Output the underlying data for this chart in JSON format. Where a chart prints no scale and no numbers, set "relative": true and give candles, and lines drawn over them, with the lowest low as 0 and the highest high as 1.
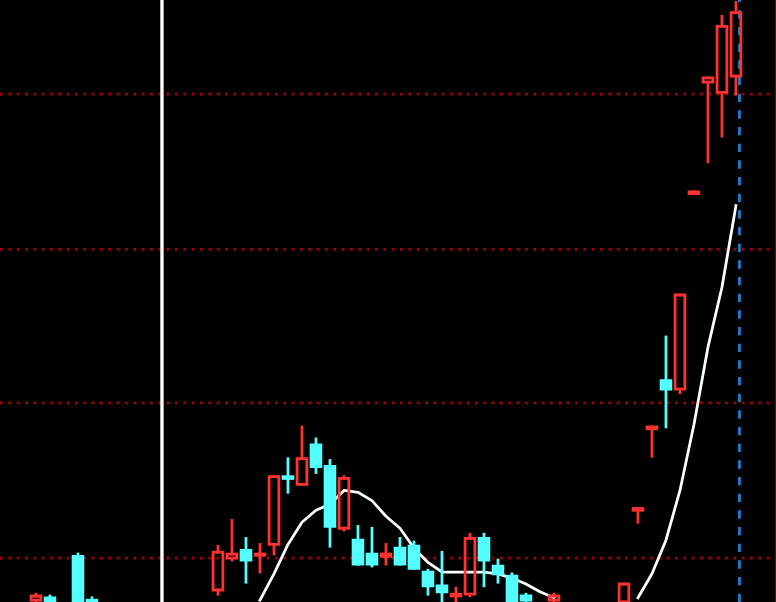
{
  "chart_data": {
    "type": "candlestick",
    "relative": true,
    "ref_lines": [
      {
        "axis": "y",
        "value": 0.073,
        "color": "#a00000",
        "line_style": "dotted"
      },
      {
        "axis": "y",
        "value": 0.332,
        "color": "#a00000",
        "line_style": "dotted"
      },
      {
        "axis": "y",
        "value": 0.588,
        "color": "#a00000",
        "line_style": "dotted"
      },
      {
        "axis": "y",
        "value": 0.847,
        "color": "#a00000",
        "line_style": "dotted"
      }
    ],
    "categories": [
      null,
      null,
      null,
      null,
      null,
      null,
      null,
      null,
      null,
      null,
      null,
      null,
      null,
      null,
      null,
      null,
      null,
      null,
      null,
      null,
      null,
      null,
      null,
      null,
      null,
      null,
      null,
      null,
      null,
      null,
      null,
      null,
      null,
      null,
      null,
      null,
      null,
      null,
      null,
      null,
      null,
      null,
      null,
      null,
      null,
      null,
      null,
      null,
      null,
      null,
      null
    ],
    "ohlc": [
      [
        0.003,
        0.013,
        0.0,
        0.01
      ],
      [
        0.007,
        0.01,
        0.0,
        0.0
      ],
      null,
      [
        0.076,
        0.08,
        0.0,
        0.0
      ],
      [
        0.003,
        0.007,
        0.0,
        0.0
      ],
      null,
      null,
      null,
      null,
      null,
      null,
      null,
      null,
      [
        0.02,
        0.093,
        0.013,
        0.083
      ],
      [
        0.073,
        0.136,
        0.07,
        0.08
      ],
      [
        0.086,
        0.106,
        0.033,
        0.07
      ],
      [
        0.078,
        0.096,
        0.05,
        0.08
      ],
      [
        0.096,
        0.209,
        0.08,
        0.209
      ],
      [
        0.209,
        0.239,
        0.183,
        0.206
      ],
      [
        0.196,
        0.292,
        0.196,
        0.239
      ],
      [
        0.262,
        0.272,
        0.216,
        0.226
      ],
      [
        0.226,
        0.236,
        0.093,
        0.126
      ],
      [
        0.123,
        0.209,
        0.12,
        0.206
      ],
      [
        0.103,
        0.126,
        0.063,
        0.063
      ],
      [
        0.08,
        0.123,
        0.06,
        0.063
      ],
      [
        0.076,
        0.096,
        0.063,
        0.08
      ],
      [
        0.09,
        0.106,
        0.063,
        0.063
      ],
      [
        0.093,
        0.1,
        0.056,
        0.056
      ],
      [
        0.05,
        0.053,
        0.013,
        0.027
      ],
      [
        0.027,
        0.083,
        0.0,
        0.017
      ],
      [
        0.01,
        0.023,
        0.0,
        0.013
      ],
      [
        0.013,
        0.113,
        0.01,
        0.106
      ],
      [
        0.106,
        0.113,
        0.027,
        0.07
      ],
      [
        0.06,
        0.07,
        0.033,
        0.047
      ],
      [
        0.043,
        0.047,
        0.0,
        0.0
      ],
      [
        0.01,
        0.013,
        0.0,
        0.003
      ],
      null,
      [
        0.003,
        0.013,
        0.0,
        0.01
      ],
      null,
      null,
      null,
      null,
      [
        0.0,
        0.03,
        0.0,
        0.03
      ],
      [
        0.153,
        0.156,
        0.133,
        0.156
      ],
      [
        0.289,
        0.292,
        0.243,
        0.292
      ],
      [
        0.369,
        0.442,
        0.292,
        0.355
      ],
      [
        0.355,
        0.512,
        0.349,
        0.512
      ],
      [
        0.681,
        0.684,
        0.681,
        0.684
      ],
      [
        0.867,
        0.874,
        0.734,
        0.874
      ],
      [
        0.85,
        0.977,
        0.777,
        0.96
      ],
      [
        0.877,
        1.0,
        0.847,
        0.983
      ]
    ],
    "colors": [
      "#ff3232",
      "#54ffff",
      null,
      "#54ffff",
      "#54ffff",
      null,
      null,
      null,
      null,
      null,
      null,
      null,
      null,
      "#ff3232",
      "#ff3232",
      "#54ffff",
      "#ff3232",
      "#ff3232",
      "#54ffff",
      "#ff3232",
      "#54ffff",
      "#54ffff",
      "#ff3232",
      "#54ffff",
      "#54ffff",
      "#ff3232",
      "#54ffff",
      "#54ffff",
      "#54ffff",
      "#54ffff",
      "#ff3232",
      "#ff3232",
      "#54ffff",
      "#54ffff",
      "#54ffff",
      "#54ffff",
      null,
      "#ff3232",
      null,
      null,
      null,
      null,
      "#ff3232",
      "#ff3232",
      "#ff3232",
      "#54ffff",
      "#ff3232",
      "#ff3232",
      "#ff3232",
      "#ff3232",
      "#ff3232"
    ],
    "series": [
      {
        "type": "line",
        "color": "#ffffff",
        "values": [
          null,
          null,
          null,
          null,
          null,
          null,
          null,
          null,
          null,
          null,
          null,
          null,
          null,
          null,
          null,
          null,
          0.003,
          0.047,
          0.096,
          0.133,
          0.153,
          0.163,
          0.186,
          0.183,
          0.169,
          0.143,
          0.123,
          0.09,
          0.066,
          0.05,
          0.05,
          0.05,
          0.05,
          0.047,
          0.04,
          0.03,
          0.017,
          0.007,
          null,
          null,
          null,
          null,
          null,
          0.007,
          0.047,
          0.103,
          0.186,
          0.296,
          0.425,
          0.525,
          0.661
        ]
      }
    ]
  }
}
